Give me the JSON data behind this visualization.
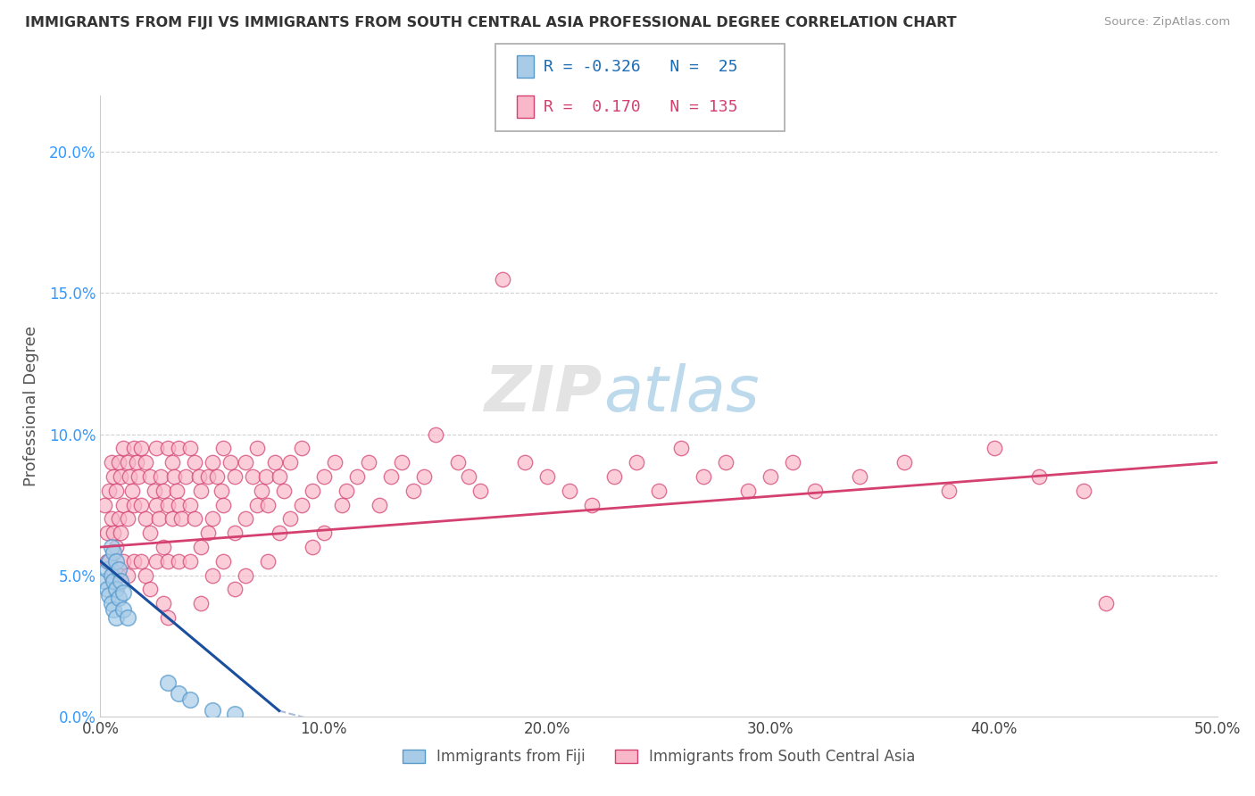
{
  "title": "IMMIGRANTS FROM FIJI VS IMMIGRANTS FROM SOUTH CENTRAL ASIA PROFESSIONAL DEGREE CORRELATION CHART",
  "source": "Source: ZipAtlas.com",
  "xlim": [
    0.0,
    0.5
  ],
  "ylim": [
    0.0,
    0.22
  ],
  "ylabel": "Professional Degree",
  "legend1_label": "Immigrants from Fiji",
  "legend2_label": "Immigrants from South Central Asia",
  "R1": -0.326,
  "N1": 25,
  "R2": 0.17,
  "N2": 135,
  "color_fiji": "#a8cce8",
  "color_sca": "#f9b8ca",
  "trendline_fiji": "#1a4f9e",
  "trendline_sca": "#d44070",
  "trendline_fiji_dashed": "#aabbd8",
  "background_color": "#ffffff",
  "watermark_zip": "ZIP",
  "watermark_atlas": "atlas",
  "fiji_trend": [
    0.0,
    0.08,
    0.055,
    -0.002
  ],
  "sca_trend": [
    0.0,
    0.5,
    0.06,
    0.09
  ],
  "fiji_points": [
    [
      0.002,
      0.048
    ],
    [
      0.003,
      0.052
    ],
    [
      0.003,
      0.045
    ],
    [
      0.004,
      0.055
    ],
    [
      0.004,
      0.043
    ],
    [
      0.005,
      0.06
    ],
    [
      0.005,
      0.05
    ],
    [
      0.005,
      0.04
    ],
    [
      0.006,
      0.058
    ],
    [
      0.006,
      0.048
    ],
    [
      0.006,
      0.038
    ],
    [
      0.007,
      0.055
    ],
    [
      0.007,
      0.045
    ],
    [
      0.007,
      0.035
    ],
    [
      0.008,
      0.052
    ],
    [
      0.008,
      0.042
    ],
    [
      0.009,
      0.048
    ],
    [
      0.01,
      0.044
    ],
    [
      0.01,
      0.038
    ],
    [
      0.012,
      0.035
    ],
    [
      0.03,
      0.012
    ],
    [
      0.035,
      0.008
    ],
    [
      0.04,
      0.006
    ],
    [
      0.05,
      0.002
    ],
    [
      0.06,
      0.001
    ]
  ],
  "sca_points": [
    [
      0.002,
      0.075
    ],
    [
      0.003,
      0.065
    ],
    [
      0.003,
      0.055
    ],
    [
      0.004,
      0.08
    ],
    [
      0.004,
      0.055
    ],
    [
      0.005,
      0.09
    ],
    [
      0.005,
      0.07
    ],
    [
      0.005,
      0.05
    ],
    [
      0.006,
      0.085
    ],
    [
      0.006,
      0.065
    ],
    [
      0.007,
      0.08
    ],
    [
      0.007,
      0.06
    ],
    [
      0.008,
      0.09
    ],
    [
      0.008,
      0.07
    ],
    [
      0.008,
      0.05
    ],
    [
      0.009,
      0.085
    ],
    [
      0.009,
      0.065
    ],
    [
      0.01,
      0.095
    ],
    [
      0.01,
      0.075
    ],
    [
      0.01,
      0.055
    ],
    [
      0.012,
      0.09
    ],
    [
      0.012,
      0.07
    ],
    [
      0.012,
      0.05
    ],
    [
      0.013,
      0.085
    ],
    [
      0.014,
      0.08
    ],
    [
      0.015,
      0.095
    ],
    [
      0.015,
      0.075
    ],
    [
      0.015,
      0.055
    ],
    [
      0.016,
      0.09
    ],
    [
      0.017,
      0.085
    ],
    [
      0.018,
      0.095
    ],
    [
      0.018,
      0.075
    ],
    [
      0.018,
      0.055
    ],
    [
      0.02,
      0.09
    ],
    [
      0.02,
      0.07
    ],
    [
      0.02,
      0.05
    ],
    [
      0.022,
      0.085
    ],
    [
      0.022,
      0.065
    ],
    [
      0.022,
      0.045
    ],
    [
      0.024,
      0.08
    ],
    [
      0.025,
      0.095
    ],
    [
      0.025,
      0.075
    ],
    [
      0.025,
      0.055
    ],
    [
      0.026,
      0.07
    ],
    [
      0.027,
      0.085
    ],
    [
      0.028,
      0.08
    ],
    [
      0.028,
      0.06
    ],
    [
      0.028,
      0.04
    ],
    [
      0.03,
      0.095
    ],
    [
      0.03,
      0.075
    ],
    [
      0.03,
      0.055
    ],
    [
      0.03,
      0.035
    ],
    [
      0.032,
      0.09
    ],
    [
      0.032,
      0.07
    ],
    [
      0.033,
      0.085
    ],
    [
      0.034,
      0.08
    ],
    [
      0.035,
      0.095
    ],
    [
      0.035,
      0.075
    ],
    [
      0.035,
      0.055
    ],
    [
      0.036,
      0.07
    ],
    [
      0.038,
      0.085
    ],
    [
      0.04,
      0.095
    ],
    [
      0.04,
      0.075
    ],
    [
      0.04,
      0.055
    ],
    [
      0.042,
      0.09
    ],
    [
      0.042,
      0.07
    ],
    [
      0.044,
      0.085
    ],
    [
      0.045,
      0.08
    ],
    [
      0.045,
      0.06
    ],
    [
      0.045,
      0.04
    ],
    [
      0.048,
      0.085
    ],
    [
      0.048,
      0.065
    ],
    [
      0.05,
      0.09
    ],
    [
      0.05,
      0.07
    ],
    [
      0.05,
      0.05
    ],
    [
      0.052,
      0.085
    ],
    [
      0.054,
      0.08
    ],
    [
      0.055,
      0.095
    ],
    [
      0.055,
      0.075
    ],
    [
      0.055,
      0.055
    ],
    [
      0.058,
      0.09
    ],
    [
      0.06,
      0.085
    ],
    [
      0.06,
      0.065
    ],
    [
      0.06,
      0.045
    ],
    [
      0.065,
      0.09
    ],
    [
      0.065,
      0.07
    ],
    [
      0.065,
      0.05
    ],
    [
      0.068,
      0.085
    ],
    [
      0.07,
      0.095
    ],
    [
      0.07,
      0.075
    ],
    [
      0.072,
      0.08
    ],
    [
      0.074,
      0.085
    ],
    [
      0.075,
      0.075
    ],
    [
      0.075,
      0.055
    ],
    [
      0.078,
      0.09
    ],
    [
      0.08,
      0.085
    ],
    [
      0.08,
      0.065
    ],
    [
      0.082,
      0.08
    ],
    [
      0.085,
      0.09
    ],
    [
      0.085,
      0.07
    ],
    [
      0.09,
      0.095
    ],
    [
      0.09,
      0.075
    ],
    [
      0.095,
      0.08
    ],
    [
      0.095,
      0.06
    ],
    [
      0.1,
      0.085
    ],
    [
      0.1,
      0.065
    ],
    [
      0.105,
      0.09
    ],
    [
      0.108,
      0.075
    ],
    [
      0.11,
      0.08
    ],
    [
      0.115,
      0.085
    ],
    [
      0.12,
      0.09
    ],
    [
      0.125,
      0.075
    ],
    [
      0.13,
      0.085
    ],
    [
      0.135,
      0.09
    ],
    [
      0.14,
      0.08
    ],
    [
      0.145,
      0.085
    ],
    [
      0.15,
      0.1
    ],
    [
      0.16,
      0.09
    ],
    [
      0.165,
      0.085
    ],
    [
      0.17,
      0.08
    ],
    [
      0.18,
      0.155
    ],
    [
      0.19,
      0.09
    ],
    [
      0.2,
      0.085
    ],
    [
      0.21,
      0.08
    ],
    [
      0.22,
      0.075
    ],
    [
      0.23,
      0.085
    ],
    [
      0.24,
      0.09
    ],
    [
      0.25,
      0.08
    ],
    [
      0.26,
      0.095
    ],
    [
      0.27,
      0.085
    ],
    [
      0.28,
      0.09
    ],
    [
      0.29,
      0.08
    ],
    [
      0.3,
      0.085
    ],
    [
      0.31,
      0.09
    ],
    [
      0.32,
      0.08
    ],
    [
      0.34,
      0.085
    ],
    [
      0.36,
      0.09
    ],
    [
      0.38,
      0.08
    ],
    [
      0.4,
      0.095
    ],
    [
      0.42,
      0.085
    ],
    [
      0.44,
      0.08
    ],
    [
      0.45,
      0.04
    ]
  ]
}
